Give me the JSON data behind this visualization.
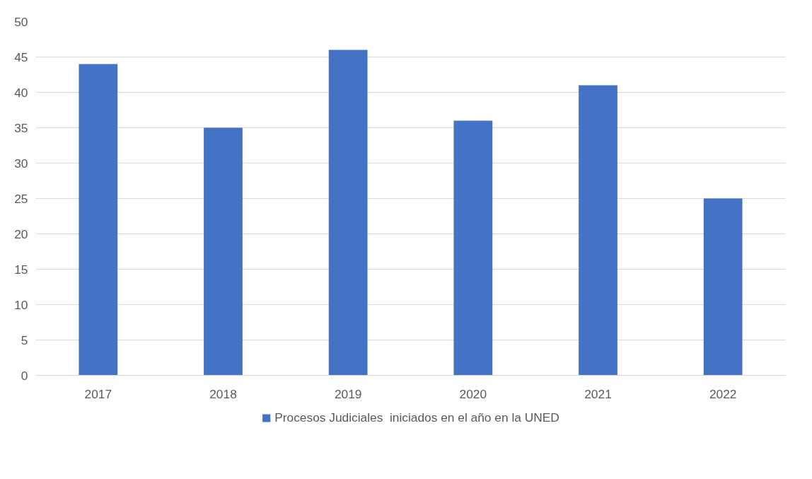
{
  "chart_data": {
    "type": "bar",
    "categories": [
      "2017",
      "2018",
      "2019",
      "2020",
      "2021",
      "2022"
    ],
    "series": [
      {
        "name": "Procesos Judiciales  iniciados en el año en la UNED",
        "color": "#4472c4",
        "values": [
          44,
          35,
          46,
          36,
          41,
          25
        ]
      }
    ],
    "ylim": [
      0,
      50
    ],
    "yticks": [
      0,
      5,
      10,
      15,
      20,
      25,
      30,
      35,
      40,
      45,
      50
    ],
    "grid": "y",
    "legend": "bottom"
  }
}
